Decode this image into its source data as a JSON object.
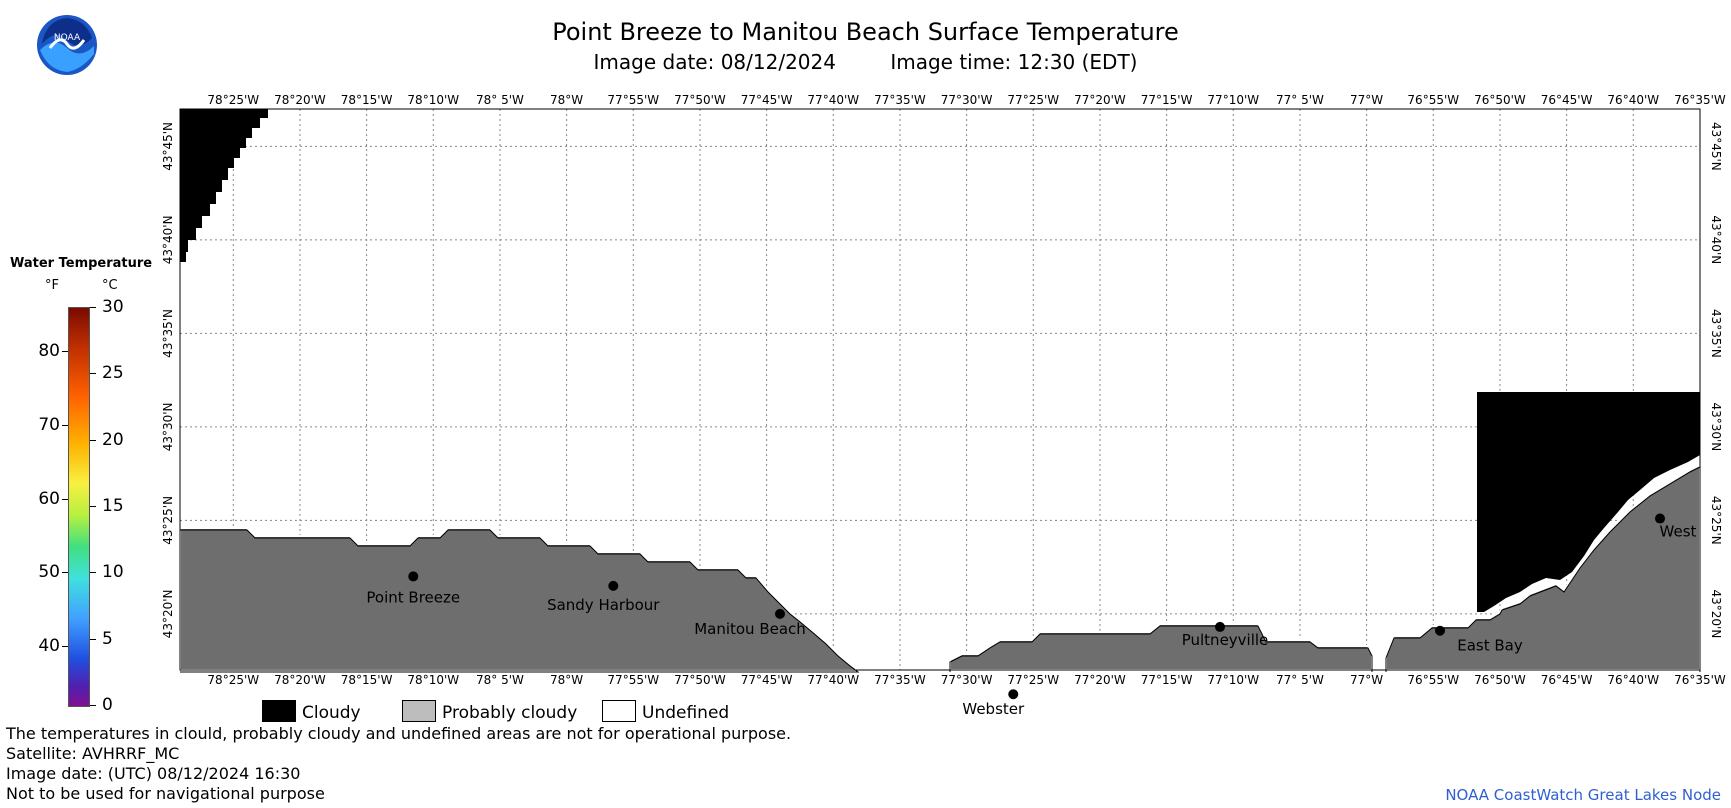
{
  "title": "Point Breeze to Manitou Beach Surface Temperature",
  "image_date": "Image date: 08/12/2024",
  "image_time": "Image time: 12:30 (EDT)",
  "logo_text": "NOAA",
  "lon_labels": [
    "78°25'W",
    "78°20'W",
    "78°15'W",
    "78°10'W",
    "78° 5'W",
    "78°W",
    "77°55'W",
    "77°50'W",
    "77°45'W",
    "77°40'W",
    "77°35'W",
    "77°30'W",
    "77°25'W",
    "77°20'W",
    "77°15'W",
    "77°10'W",
    "77° 5'W",
    "77°W",
    "76°55'W",
    "76°50'W",
    "76°45'W",
    "76°40'W",
    "76°35'W"
  ],
  "lat_labels": [
    "43°45'N",
    "43°40'N",
    "43°35'N",
    "43°30'N",
    "43°25'N",
    "43°20'N"
  ],
  "places": [
    {
      "name": "Point Breeze",
      "lon": -78.1917,
      "lat": 43.3667
    },
    {
      "name": "Sandy Harbour",
      "lon": -77.9417,
      "lat": 43.3583
    },
    {
      "name": "Manitou Beach",
      "lon": -77.7333,
      "lat": 43.3333
    },
    {
      "name": "Webster",
      "lon": -77.4417,
      "lat": 43.2617
    },
    {
      "name": "Pultneyville",
      "lon": -77.1833,
      "lat": 43.3217
    },
    {
      "name": "East Bay",
      "lon": -76.9083,
      "lat": 43.3183
    },
    {
      "name": "West",
      "lon": -76.6333,
      "lat": 43.4183
    }
  ],
  "legend": {
    "title": "Water Temperature",
    "unit_f": "°F",
    "unit_c": "°C",
    "f_ticks": [
      "80",
      "70",
      "60",
      "50",
      "40"
    ],
    "c_ticks": [
      "30",
      "25",
      "20",
      "15",
      "10",
      "5",
      "0"
    ],
    "categories": [
      "Cloudy",
      "Probably cloudy",
      "Undefined"
    ],
    "category_colors": [
      "#000000",
      "#bdbdbd",
      "#ffffff"
    ]
  },
  "colors": {
    "land": "#6e6e6e",
    "cloud": "#000000",
    "water": "#ffffff",
    "grid": "#888888"
  },
  "notes": [
    "The temperatures in clould, probably cloudy and undefined areas are not for operational purpose.",
    "Satellite: AVHRRF_MC",
    "Image date: (UTC) 08/12/2024  16:30",
    "Not to be used for navigational purpose"
  ],
  "credit": "NOAA CoastWatch Great Lakes Node"
}
